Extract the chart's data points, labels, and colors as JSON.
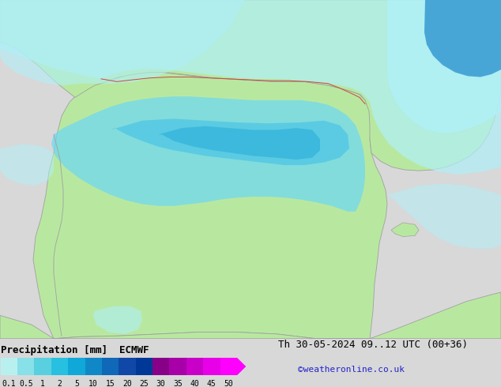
{
  "title_left": "Precipitation [mm]  ECMWF",
  "title_right": "Th 30-05-2024 09..12 UTC (00+36)",
  "credit": "©weatheronline.co.uk",
  "colorbar_values": [
    "0.1",
    "0.5",
    "1",
    "2",
    "5",
    "10",
    "15",
    "20",
    "25",
    "30",
    "35",
    "40",
    "45",
    "50"
  ],
  "colorbar_colors": [
    "#b8f0f0",
    "#88e0e8",
    "#58d0e0",
    "#28c0e0",
    "#10a8d8",
    "#1088c8",
    "#1068b8",
    "#1048a8",
    "#003898",
    "#880088",
    "#a800a8",
    "#c800c8",
    "#e800e8",
    "#ff00ff"
  ],
  "bg_color": "#d8d8d8",
  "land_color": "#b8e8a0",
  "sea_color": "#d0d0d0",
  "font_title_size": 9,
  "font_tick_size": 7,
  "font_credit_size": 8,
  "text_color": "#000000",
  "credit_color": "#2222cc",
  "precip_light_cyan": "#b0f0f8",
  "precip_cyan": "#70d8f0",
  "precip_med_cyan": "#40c0e8",
  "precip_dark_cyan": "#20a8d8",
  "precip_blue": "#1080c8",
  "precip_dark_blue": "#1050a8",
  "border_color": "#a0a0a0"
}
